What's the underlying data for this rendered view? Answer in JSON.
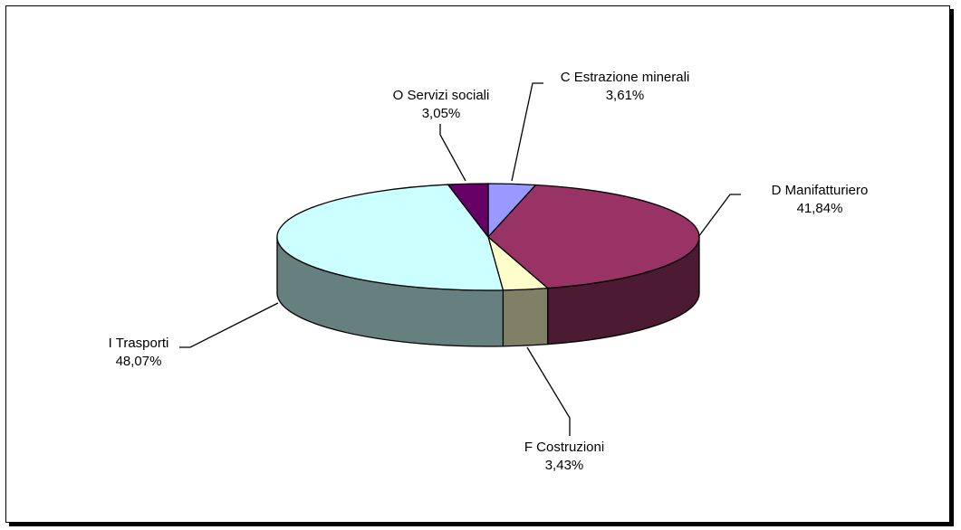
{
  "chart_data": {
    "type": "pie",
    "three_d": true,
    "slices": [
      {
        "label": "C  Estrazione minerali",
        "value": 3.61,
        "value_text": "3,61%",
        "color": "#9999ff"
      },
      {
        "label": "D  Manifatturiero",
        "value": 41.84,
        "value_text": "41,84%",
        "color": "#993366"
      },
      {
        "label": "F  Costruzioni",
        "value": 3.43,
        "value_text": "3,43%",
        "color": "#ffffcc"
      },
      {
        "label": "I  Trasporti",
        "value": 48.07,
        "value_text": "48,07%",
        "color": "#ccffff"
      },
      {
        "label": "O  Servizi sociali",
        "value": 3.05,
        "value_text": "3,05%",
        "color": "#660066"
      }
    ]
  }
}
